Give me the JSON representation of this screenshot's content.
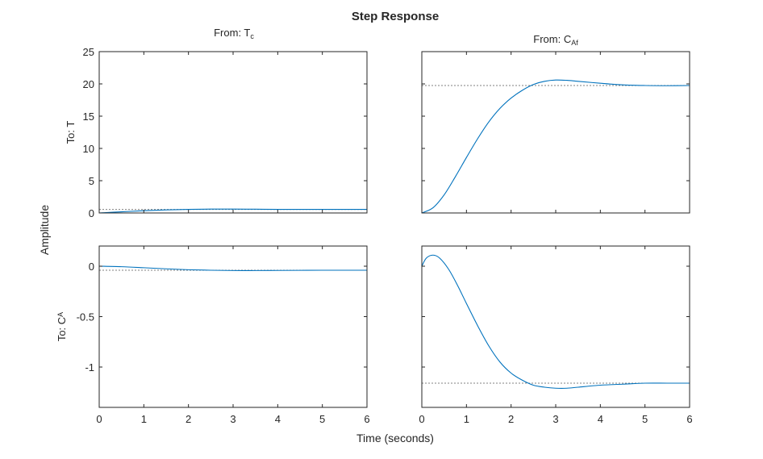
{
  "figure": {
    "title": "Step Response",
    "xlabel": "Time (seconds)",
    "ylabel": "Amplitude",
    "colors": {
      "line": "#0072bd",
      "steady": "#808080",
      "axis": "#262626",
      "background": "#ffffff"
    }
  },
  "columns": [
    {
      "label": "From:  T",
      "sub": "c"
    },
    {
      "label": "From:  C",
      "sub": "Af"
    }
  ],
  "rows": [
    {
      "label": "To: T",
      "sub": "",
      "ylim": [
        0,
        25
      ],
      "yticks": [
        0,
        5,
        10,
        15,
        20,
        25
      ],
      "ytick_labels": [
        "0",
        "5",
        "10",
        "15",
        "20",
        "25"
      ]
    },
    {
      "label": "To:  C",
      "sub": "A",
      "ylim": [
        -1.4,
        0.2
      ],
      "yticks": [
        -1,
        -0.5,
        0
      ],
      "ytick_labels": [
        "-1",
        "-0.5",
        "0"
      ]
    }
  ],
  "xlim": [
    0,
    6
  ],
  "xticks": [
    0,
    1,
    2,
    3,
    4,
    5,
    6
  ],
  "xtick_labels": [
    "0",
    "1",
    "2",
    "3",
    "4",
    "5",
    "6"
  ],
  "chart_data": {
    "type": "line",
    "title": "Step Response",
    "xlabel": "Time (seconds)",
    "ylabel": "Amplitude",
    "xlim": [
      0,
      6
    ],
    "grid": false,
    "subplots": [
      {
        "name": "From: Tc To: T",
        "row": 0,
        "col": 0,
        "ylim": [
          0,
          25
        ],
        "steady_state": 0.55,
        "x": [
          0,
          0.5,
          1,
          1.5,
          2,
          2.5,
          3,
          3.5,
          4,
          4.5,
          5,
          5.5,
          6
        ],
        "y": [
          0,
          0.18,
          0.35,
          0.48,
          0.56,
          0.6,
          0.6,
          0.58,
          0.56,
          0.55,
          0.55,
          0.55,
          0.55
        ]
      },
      {
        "name": "From: CAf To: T",
        "row": 0,
        "col": 1,
        "ylim": [
          0,
          25
        ],
        "steady_state": 19.75,
        "x": [
          0,
          0.25,
          0.5,
          0.75,
          1,
          1.25,
          1.5,
          1.75,
          2,
          2.25,
          2.5,
          2.75,
          3,
          3.25,
          3.5,
          4,
          4.5,
          5,
          5.5,
          6
        ],
        "y": [
          0,
          0.8,
          2.8,
          5.6,
          8.6,
          11.5,
          14.1,
          16.2,
          17.8,
          19.0,
          19.9,
          20.4,
          20.6,
          20.55,
          20.4,
          20.1,
          19.85,
          19.75,
          19.72,
          19.75
        ]
      },
      {
        "name": "From: Tc To: CA",
        "row": 1,
        "col": 0,
        "ylim": [
          -1.4,
          0.2
        ],
        "steady_state": -0.04,
        "x": [
          0,
          0.5,
          1,
          1.5,
          2,
          2.5,
          3,
          3.5,
          4,
          4.5,
          5,
          5.5,
          6
        ],
        "y": [
          0,
          -0.005,
          -0.015,
          -0.026,
          -0.035,
          -0.04,
          -0.043,
          -0.043,
          -0.042,
          -0.041,
          -0.04,
          -0.04,
          -0.04
        ]
      },
      {
        "name": "From: CAf To: CA",
        "row": 1,
        "col": 1,
        "ylim": [
          -1.4,
          0.2
        ],
        "steady_state": -1.16,
        "x": [
          0,
          0.1,
          0.25,
          0.4,
          0.6,
          0.8,
          1,
          1.25,
          1.5,
          1.75,
          2,
          2.25,
          2.5,
          2.75,
          3,
          3.25,
          3.5,
          4,
          4.5,
          5,
          5.5,
          6
        ],
        "y": [
          0,
          0.08,
          0.11,
          0.08,
          -0.03,
          -0.19,
          -0.37,
          -0.59,
          -0.79,
          -0.95,
          -1.06,
          -1.13,
          -1.18,
          -1.2,
          -1.21,
          -1.21,
          -1.2,
          -1.18,
          -1.17,
          -1.16,
          -1.16,
          -1.16
        ]
      }
    ]
  }
}
